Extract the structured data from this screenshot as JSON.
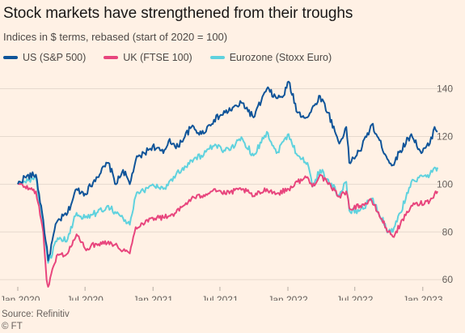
{
  "title": "Stock markets have strengthened from their troughs",
  "subtitle": "Indices in $ terms, rebased (start of 2020 = 100)",
  "source": "Source: Refinitiv",
  "credit": "© FT",
  "chart_data": {
    "type": "line",
    "title": "Stock markets have strengthened from their troughs",
    "subtitle": "Indices in $ terms, rebased (start of 2020 = 100)",
    "x_labels": [
      "Jan 2020",
      "Jul 2020",
      "Jan 2021",
      "Jul 2021",
      "Jan 2022",
      "Jul 2022",
      "Jan 2023"
    ],
    "y_ticks": [
      60,
      80,
      100,
      120,
      140
    ],
    "ylim": [
      57,
      148
    ],
    "grid": "horizontal",
    "legend_position": "top",
    "series": [
      {
        "name": "US (S&P 500)",
        "color": "#0f5499",
        "points": [
          [
            "2020-01-01",
            100
          ],
          [
            "2020-01-20",
            103
          ],
          [
            "2020-02-19",
            104
          ],
          [
            "2020-03-10",
            85
          ],
          [
            "2020-03-23",
            68
          ],
          [
            "2020-04-15",
            84
          ],
          [
            "2020-05-15",
            88
          ],
          [
            "2020-06-08",
            98
          ],
          [
            "2020-07-01",
            96
          ],
          [
            "2020-08-01",
            103
          ],
          [
            "2020-09-02",
            109
          ],
          [
            "2020-09-23",
            100
          ],
          [
            "2020-10-12",
            106
          ],
          [
            "2020-10-30",
            100
          ],
          [
            "2020-11-15",
            110
          ],
          [
            "2020-12-31",
            116
          ],
          [
            "2021-01-29",
            113
          ],
          [
            "2021-02-15",
            119
          ],
          [
            "2021-03-04",
            115
          ],
          [
            "2021-04-15",
            124
          ],
          [
            "2021-05-12",
            121
          ],
          [
            "2021-06-15",
            127
          ],
          [
            "2021-07-15",
            130
          ],
          [
            "2021-08-31",
            134
          ],
          [
            "2021-09-30",
            128
          ],
          [
            "2021-11-05",
            140
          ],
          [
            "2021-12-01",
            136
          ],
          [
            "2021-12-20",
            137
          ],
          [
            "2022-01-03",
            143
          ],
          [
            "2022-01-27",
            130
          ],
          [
            "2022-02-23",
            128
          ],
          [
            "2022-03-29",
            137
          ],
          [
            "2022-04-20",
            130
          ],
          [
            "2022-05-20",
            117
          ],
          [
            "2022-06-08",
            124
          ],
          [
            "2022-06-16",
            109
          ],
          [
            "2022-07-15",
            114
          ],
          [
            "2022-08-16",
            125
          ],
          [
            "2022-09-30",
            110
          ],
          [
            "2022-10-12",
            108
          ],
          [
            "2022-11-01",
            114
          ],
          [
            "2022-12-01",
            121
          ],
          [
            "2022-12-28",
            113
          ],
          [
            "2023-01-20",
            117
          ],
          [
            "2023-02-02",
            124
          ],
          [
            "2023-02-10",
            122
          ]
        ]
      },
      {
        "name": "UK (FTSE 100)",
        "color": "#e8457d",
        "points": [
          [
            "2020-01-01",
            100
          ],
          [
            "2020-01-20",
            99
          ],
          [
            "2020-02-19",
            97
          ],
          [
            "2020-03-10",
            80
          ],
          [
            "2020-03-19",
            60
          ],
          [
            "2020-03-23",
            57
          ],
          [
            "2020-04-15",
            70
          ],
          [
            "2020-05-15",
            71
          ],
          [
            "2020-06-08",
            79
          ],
          [
            "2020-07-01",
            73
          ],
          [
            "2020-08-01",
            75
          ],
          [
            "2020-09-02",
            76
          ],
          [
            "2020-10-30",
            71
          ],
          [
            "2020-11-15",
            82
          ],
          [
            "2020-12-31",
            86
          ],
          [
            "2021-01-29",
            86
          ],
          [
            "2021-03-04",
            88
          ],
          [
            "2021-04-15",
            94
          ],
          [
            "2021-05-12",
            95
          ],
          [
            "2021-06-15",
            98
          ],
          [
            "2021-07-15",
            96
          ],
          [
            "2021-08-31",
            98
          ],
          [
            "2021-09-30",
            95
          ],
          [
            "2021-11-05",
            98
          ],
          [
            "2021-12-01",
            96
          ],
          [
            "2022-01-03",
            98
          ],
          [
            "2022-01-27",
            101
          ],
          [
            "2022-02-23",
            103
          ],
          [
            "2022-03-08",
            99
          ],
          [
            "2022-03-29",
            104
          ],
          [
            "2022-04-20",
            100
          ],
          [
            "2022-05-20",
            95
          ],
          [
            "2022-06-08",
            97
          ],
          [
            "2022-06-16",
            90
          ],
          [
            "2022-07-15",
            91
          ],
          [
            "2022-08-16",
            93
          ],
          [
            "2022-09-30",
            80
          ],
          [
            "2022-10-12",
            78
          ],
          [
            "2022-11-01",
            83
          ],
          [
            "2022-12-01",
            91
          ],
          [
            "2023-01-20",
            93
          ],
          [
            "2023-02-02",
            96
          ],
          [
            "2023-02-10",
            97
          ]
        ]
      },
      {
        "name": "Eurozone (Stoxx Euro)",
        "color": "#5fd2de",
        "points": [
          [
            "2020-01-01",
            100
          ],
          [
            "2020-01-20",
            101
          ],
          [
            "2020-02-19",
            103
          ],
          [
            "2020-03-10",
            80
          ],
          [
            "2020-03-23",
            67
          ],
          [
            "2020-04-15",
            76
          ],
          [
            "2020-05-15",
            77
          ],
          [
            "2020-06-08",
            88
          ],
          [
            "2020-07-01",
            86
          ],
          [
            "2020-08-01",
            88
          ],
          [
            "2020-09-02",
            91
          ],
          [
            "2020-10-30",
            83
          ],
          [
            "2020-11-15",
            95
          ],
          [
            "2020-12-31",
            100
          ],
          [
            "2021-01-29",
            98
          ],
          [
            "2021-03-04",
            104
          ],
          [
            "2021-04-15",
            110
          ],
          [
            "2021-05-12",
            112
          ],
          [
            "2021-06-15",
            116
          ],
          [
            "2021-07-15",
            114
          ],
          [
            "2021-08-31",
            119
          ],
          [
            "2021-09-30",
            112
          ],
          [
            "2021-11-05",
            122
          ],
          [
            "2021-12-01",
            113
          ],
          [
            "2021-12-20",
            118
          ],
          [
            "2022-01-03",
            121
          ],
          [
            "2022-01-27",
            112
          ],
          [
            "2022-02-23",
            109
          ],
          [
            "2022-03-08",
            99
          ],
          [
            "2022-03-29",
            106
          ],
          [
            "2022-04-20",
            102
          ],
          [
            "2022-05-20",
            95
          ],
          [
            "2022-06-08",
            101
          ],
          [
            "2022-06-16",
            89
          ],
          [
            "2022-07-15",
            89
          ],
          [
            "2022-08-16",
            94
          ],
          [
            "2022-09-30",
            80
          ],
          [
            "2022-10-12",
            80
          ],
          [
            "2022-11-01",
            88
          ],
          [
            "2022-12-01",
            101
          ],
          [
            "2023-01-20",
            104
          ],
          [
            "2023-02-02",
            107
          ],
          [
            "2023-02-10",
            107
          ]
        ]
      }
    ]
  }
}
